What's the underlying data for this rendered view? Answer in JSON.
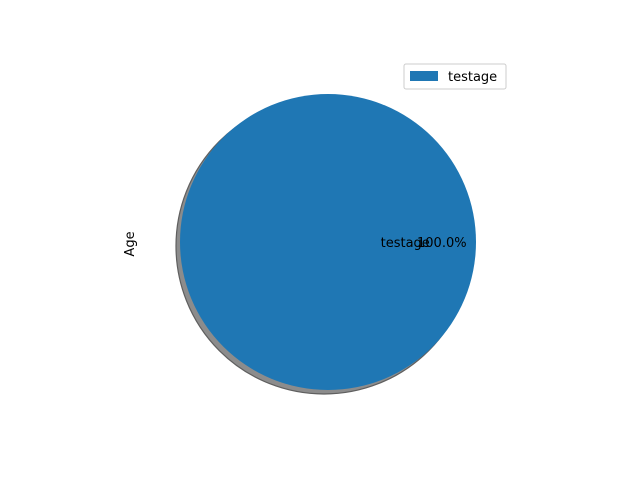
{
  "chart_data": {
    "type": "pie",
    "title": "",
    "xlabel": "",
    "ylabel": "Age",
    "categories": [
      "testage"
    ],
    "values": [
      100
    ],
    "percent_labels": [
      "100.0%"
    ],
    "colors": [
      "#1f77b4"
    ],
    "shadow": true,
    "legend": {
      "placement": "top-right",
      "entries": [
        "testage"
      ]
    }
  }
}
